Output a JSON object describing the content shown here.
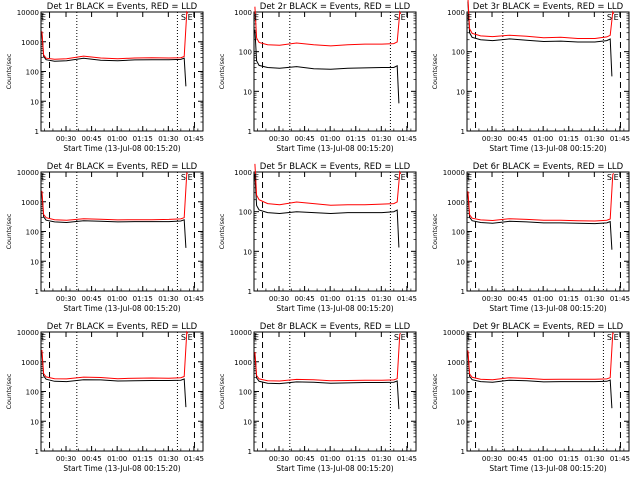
{
  "colors": {
    "events": "#000000",
    "lld": "#ff0000",
    "background": "#ffffff"
  },
  "common": {
    "ylabel": "Counts/sec",
    "xlabel": "Start Time (13-Jul-08 00:15:20)",
    "x_tick_labels": [
      "00:30",
      "00:45",
      "01:00",
      "01:15",
      "01:30",
      "01:45"
    ],
    "y_tick_labels": [
      "1",
      "10",
      "100",
      "1000",
      "10000"
    ],
    "markers": [
      "E",
      "S",
      "E"
    ]
  },
  "chart_data": [
    {
      "type": "line",
      "title": "Det 1r BLACK = Events, RED = LLD",
      "xlabel": "Start Time (13-Jul-08 00:15:20)",
      "ylabel": "Counts/sec",
      "y_scale": "log",
      "ylim": [
        1,
        10000
      ],
      "x_unit": "minutes after 00:15:20",
      "xlim": [
        0,
        95
      ],
      "dotted_vlines": [
        21,
        80
      ],
      "dashed_vlines": [
        5,
        90
      ],
      "series": [
        {
          "name": "BLACK = Events",
          "color": "#000000",
          "x": [
            3,
            8,
            15,
            25,
            35,
            45,
            55,
            65,
            75,
            82
          ],
          "values": [
            250,
            220,
            230,
            280,
            240,
            230,
            245,
            250,
            250,
            255
          ]
        },
        {
          "name": "RED = LLD",
          "color": "#ff0000",
          "x": [
            3,
            8,
            15,
            25,
            35,
            45,
            55,
            65,
            75,
            82
          ],
          "values": [
            280,
            260,
            270,
            330,
            285,
            270,
            285,
            290,
            285,
            290
          ]
        }
      ]
    },
    {
      "type": "line",
      "title": "Det 2r BLACK = Events, RED = LLD",
      "xlabel": "Start Time (13-Jul-08 00:15:20)",
      "ylabel": "Counts/sec",
      "y_scale": "log",
      "ylim": [
        1,
        1000
      ],
      "x_unit": "minutes after 00:15:20",
      "xlim": [
        0,
        95
      ],
      "dotted_vlines": [
        21,
        80
      ],
      "dashed_vlines": [
        5,
        90
      ],
      "series": [
        {
          "name": "BLACK = Events",
          "color": "#000000",
          "x": [
            3,
            8,
            15,
            25,
            35,
            45,
            55,
            65,
            75,
            82
          ],
          "values": [
            45,
            40,
            38,
            42,
            37,
            36,
            38,
            39,
            40,
            40
          ]
        },
        {
          "name": "RED = LLD",
          "color": "#ff0000",
          "x": [
            3,
            8,
            15,
            25,
            35,
            45,
            55,
            65,
            75,
            82
          ],
          "values": [
            170,
            150,
            145,
            165,
            150,
            140,
            150,
            155,
            155,
            160
          ]
        }
      ]
    },
    {
      "type": "line",
      "title": "Det 3r BLACK = Events, RED = LLD",
      "xlabel": "Start Time (13-Jul-08 00:15:20)",
      "ylabel": "Counts/sec",
      "y_scale": "log",
      "ylim": [
        1,
        1000
      ],
      "x_unit": "minutes after 00:15:20",
      "xlim": [
        0,
        95
      ],
      "dotted_vlines": [
        21,
        80
      ],
      "dashed_vlines": [
        5,
        90
      ],
      "series": [
        {
          "name": "BLACK = Events",
          "color": "#000000",
          "x": [
            3,
            8,
            15,
            25,
            35,
            45,
            55,
            65,
            75,
            82
          ],
          "values": [
            230,
            200,
            190,
            210,
            195,
            180,
            185,
            175,
            175,
            190
          ]
        },
        {
          "name": "RED = LLD",
          "color": "#ff0000",
          "x": [
            3,
            8,
            15,
            25,
            35,
            45,
            55,
            65,
            75,
            82
          ],
          "values": [
            290,
            250,
            240,
            260,
            245,
            225,
            230,
            215,
            215,
            235
          ]
        }
      ]
    },
    {
      "type": "line",
      "title": "Det 4r BLACK = Events, RED = LLD",
      "xlabel": "Start Time (13-Jul-08 00:15:20)",
      "ylabel": "Counts/sec",
      "y_scale": "log",
      "ylim": [
        1,
        10000
      ],
      "x_unit": "minutes after 00:15:20",
      "xlim": [
        0,
        95
      ],
      "dotted_vlines": [
        21,
        80
      ],
      "dashed_vlines": [
        5,
        90
      ],
      "series": [
        {
          "name": "BLACK = Events",
          "color": "#000000",
          "x": [
            3,
            8,
            15,
            25,
            35,
            45,
            55,
            65,
            75,
            82
          ],
          "values": [
            240,
            210,
            200,
            230,
            220,
            210,
            215,
            215,
            215,
            225
          ]
        },
        {
          "name": "RED = LLD",
          "color": "#ff0000",
          "x": [
            3,
            8,
            15,
            25,
            35,
            45,
            55,
            65,
            75,
            82
          ],
          "values": [
            290,
            250,
            240,
            270,
            260,
            245,
            250,
            250,
            255,
            265
          ]
        }
      ]
    },
    {
      "type": "line",
      "title": "Det 5r BLACK = Events, RED = LLD",
      "xlabel": "Start Time (13-Jul-08 00:15:20)",
      "ylabel": "Counts/sec",
      "y_scale": "log",
      "ylim": [
        1,
        1000
      ],
      "x_unit": "minutes after 00:15:20",
      "xlim": [
        0,
        95
      ],
      "dotted_vlines": [
        21,
        80
      ],
      "dashed_vlines": [
        5,
        90
      ],
      "series": [
        {
          "name": "BLACK = Events",
          "color": "#000000",
          "x": [
            3,
            8,
            15,
            25,
            35,
            45,
            55,
            65,
            75,
            82
          ],
          "values": [
            110,
            95,
            90,
            100,
            95,
            90,
            95,
            95,
            95,
            100
          ]
        },
        {
          "name": "RED = LLD",
          "color": "#ff0000",
          "x": [
            3,
            8,
            15,
            25,
            35,
            45,
            55,
            65,
            75,
            82
          ],
          "values": [
            200,
            160,
            150,
            175,
            160,
            145,
            150,
            150,
            155,
            160
          ]
        }
      ]
    },
    {
      "type": "line",
      "title": "Det 6r BLACK = Events, RED = LLD",
      "xlabel": "Start Time (13-Jul-08 00:15:20)",
      "ylabel": "Counts/sec",
      "y_scale": "log",
      "ylim": [
        1,
        10000
      ],
      "x_unit": "minutes after 00:15:20",
      "xlim": [
        0,
        95
      ],
      "dotted_vlines": [
        21,
        80
      ],
      "dashed_vlines": [
        5,
        90
      ],
      "series": [
        {
          "name": "BLACK = Events",
          "color": "#000000",
          "x": [
            3,
            8,
            15,
            25,
            35,
            45,
            55,
            65,
            75,
            82
          ],
          "values": [
            230,
            200,
            190,
            220,
            210,
            195,
            195,
            190,
            185,
            195
          ]
        },
        {
          "name": "RED = LLD",
          "color": "#ff0000",
          "x": [
            3,
            8,
            15,
            25,
            35,
            45,
            55,
            65,
            75,
            82
          ],
          "values": [
            280,
            245,
            235,
            270,
            255,
            240,
            240,
            230,
            225,
            240
          ]
        }
      ]
    },
    {
      "type": "line",
      "title": "Det 7r BLACK = Events, RED = LLD",
      "xlabel": "Start Time (13-Jul-08 00:15:20)",
      "ylabel": "Counts/sec",
      "y_scale": "log",
      "ylim": [
        1,
        10000
      ],
      "x_unit": "minutes after 00:15:20",
      "xlim": [
        0,
        95
      ],
      "dotted_vlines": [
        21,
        80
      ],
      "dashed_vlines": [
        5,
        90
      ],
      "series": [
        {
          "name": "BLACK = Events",
          "color": "#000000",
          "x": [
            3,
            8,
            15,
            25,
            35,
            45,
            55,
            65,
            75,
            82
          ],
          "values": [
            260,
            220,
            215,
            250,
            245,
            225,
            230,
            235,
            235,
            240
          ]
        },
        {
          "name": "RED = LLD",
          "color": "#ff0000",
          "x": [
            3,
            8,
            15,
            25,
            35,
            45,
            55,
            65,
            75,
            82
          ],
          "values": [
            310,
            270,
            265,
            305,
            295,
            270,
            280,
            285,
            280,
            290
          ]
        }
      ]
    },
    {
      "type": "line",
      "title": "Det 8r BLACK = Events, RED = LLD",
      "xlabel": "Start Time (13-Jul-08 00:15:20)",
      "ylabel": "Counts/sec",
      "y_scale": "log",
      "ylim": [
        1,
        10000
      ],
      "x_unit": "minutes after 00:15:20",
      "xlim": [
        0,
        95
      ],
      "dotted_vlines": [
        21,
        80
      ],
      "dashed_vlines": [
        5,
        90
      ],
      "series": [
        {
          "name": "BLACK = Events",
          "color": "#000000",
          "x": [
            3,
            8,
            15,
            25,
            35,
            45,
            55,
            65,
            75,
            82
          ],
          "values": [
            220,
            190,
            185,
            210,
            205,
            190,
            195,
            200,
            200,
            205
          ]
        },
        {
          "name": "RED = LLD",
          "color": "#ff0000",
          "x": [
            3,
            8,
            15,
            25,
            35,
            45,
            55,
            65,
            75,
            82
          ],
          "values": [
            265,
            230,
            225,
            255,
            250,
            230,
            235,
            240,
            240,
            245
          ]
        }
      ]
    },
    {
      "type": "line",
      "title": "Det 9r BLACK = Events, RED = LLD",
      "xlabel": "Start Time (13-Jul-08 00:15:20)",
      "ylabel": "Counts/sec",
      "y_scale": "log",
      "ylim": [
        1,
        10000
      ],
      "x_unit": "minutes after 00:15:20",
      "xlim": [
        0,
        95
      ],
      "dotted_vlines": [
        21,
        80
      ],
      "dashed_vlines": [
        5,
        90
      ],
      "series": [
        {
          "name": "BLACK = Events",
          "color": "#000000",
          "x": [
            3,
            8,
            15,
            25,
            35,
            45,
            55,
            65,
            75,
            82
          ],
          "values": [
            250,
            215,
            205,
            240,
            230,
            210,
            215,
            215,
            215,
            220
          ]
        },
        {
          "name": "RED = LLD",
          "color": "#ff0000",
          "x": [
            3,
            8,
            15,
            25,
            35,
            45,
            55,
            65,
            75,
            82
          ],
          "values": [
            300,
            260,
            250,
            290,
            275,
            255,
            260,
            260,
            260,
            265
          ]
        }
      ]
    }
  ]
}
